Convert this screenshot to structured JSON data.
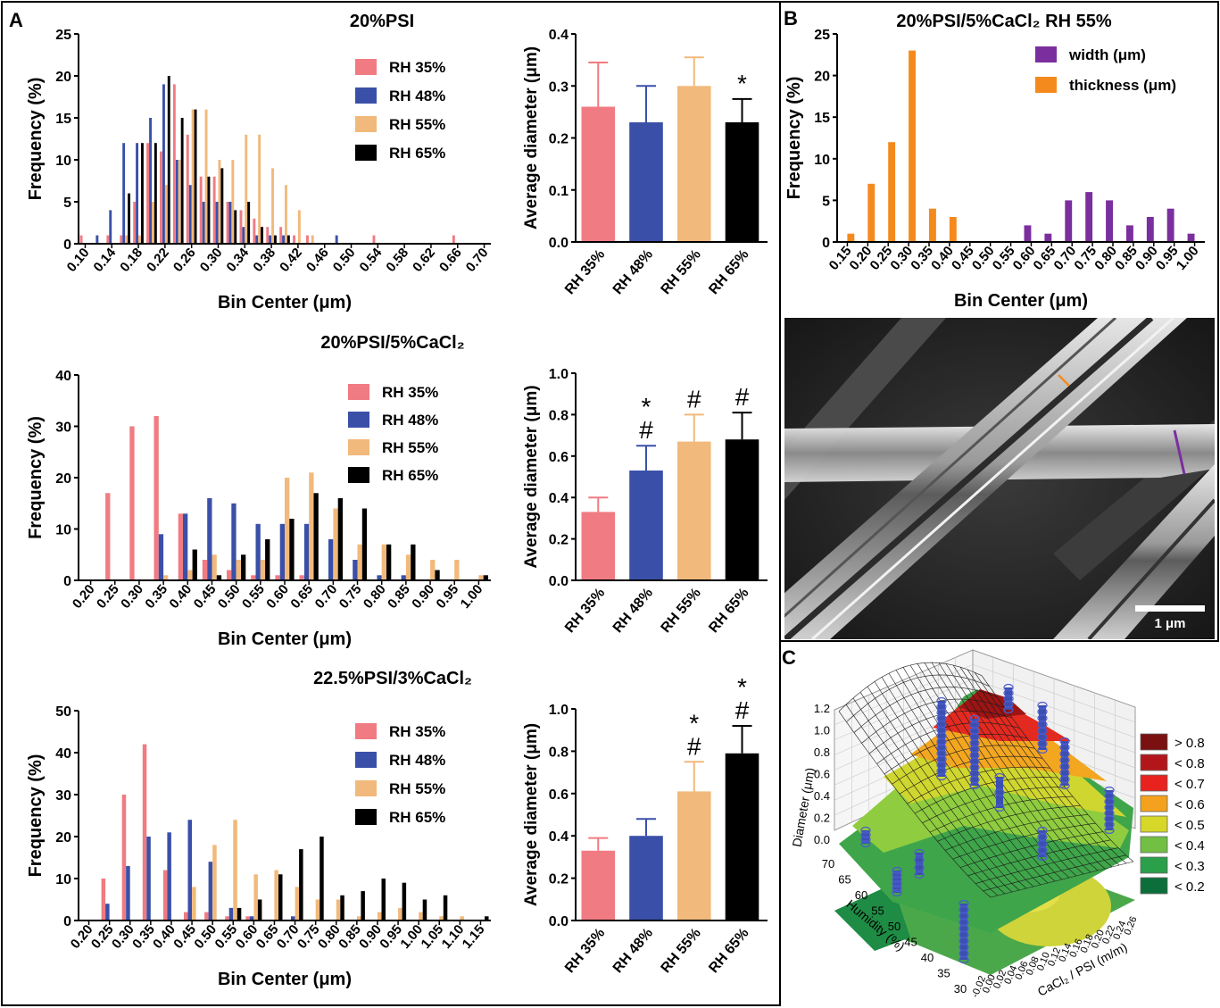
{
  "panels": {
    "A": "A",
    "B": "B",
    "C": "C"
  },
  "common": {
    "hist_ylabel": "Frequency (%)",
    "hist_xlabel": "Bin Center (μm)",
    "bar_ylabel": "Average diameter (μm)",
    "bar_categories": [
      "RH 35%",
      "RH 48%",
      "RH 55%",
      "RH 65%"
    ]
  },
  "colors": {
    "rh35": "#f07b82",
    "rh48": "#3a50a8",
    "rh55": "#f1b97b",
    "rh65": "#000000",
    "width": "#7b2f9e",
    "thickness": "#f48a1e"
  },
  "chart_data": [
    {
      "id": "A1-hist",
      "type": "bar",
      "title": "20%PSI",
      "xlabel": "Bin Center (μm)",
      "ylabel": "Frequency (%)",
      "ylim": [
        0,
        25
      ],
      "yticks": [
        0,
        5,
        10,
        15,
        20,
        25
      ],
      "categories": [
        "0.10",
        "0.12",
        "0.14",
        "0.16",
        "0.18",
        "0.20",
        "0.22",
        "0.24",
        "0.26",
        "0.28",
        "0.30",
        "0.32",
        "0.34",
        "0.36",
        "0.38",
        "0.40",
        "0.42",
        "0.44",
        "0.46",
        "0.48",
        "0.50",
        "0.52",
        "0.54",
        "0.56",
        "0.58",
        "0.60",
        "0.62",
        "0.64",
        "0.66",
        "0.68",
        "0.70"
      ],
      "tick_labels": [
        "0.10",
        "0.14",
        "0.18",
        "0.22",
        "0.26",
        "0.30",
        "0.34",
        "0.38",
        "0.42",
        "0.46",
        "0.50",
        "0.54",
        "0.58",
        "0.62",
        "0.66",
        "0.70"
      ],
      "legend_position": "top-right",
      "series": [
        {
          "name": "RH 35%",
          "values": [
            1,
            0,
            1,
            1,
            5,
            12,
            11,
            19,
            13,
            8,
            8,
            5,
            4,
            3,
            2,
            2,
            1,
            1,
            0,
            0,
            0,
            0,
            1,
            0,
            0,
            0,
            0,
            0,
            1,
            0,
            0
          ]
        },
        {
          "name": "RH 48%",
          "values": [
            0,
            1,
            4,
            12,
            12,
            15,
            19,
            10,
            7,
            5,
            5,
            5,
            2,
            1,
            1,
            1,
            0,
            0,
            0,
            1,
            0,
            0,
            0,
            0,
            0,
            0,
            0,
            0,
            0,
            0,
            0
          ]
        },
        {
          "name": "RH 55%",
          "values": [
            0,
            0,
            0,
            1,
            1,
            5,
            7,
            10,
            16,
            16,
            10,
            10,
            13,
            13,
            9,
            7,
            4,
            1,
            0,
            0,
            0,
            0,
            0,
            0,
            0,
            0,
            0,
            0,
            0,
            0,
            0
          ]
        },
        {
          "name": "RH 65%",
          "values": [
            0,
            0,
            0,
            6,
            12,
            12,
            20,
            15,
            16,
            8,
            9,
            4,
            5,
            2,
            1,
            1,
            0,
            0,
            0,
            0,
            0,
            0,
            0,
            0,
            0,
            0,
            0,
            0,
            0,
            0,
            0
          ]
        }
      ]
    },
    {
      "id": "A1-avg",
      "type": "bar",
      "title": "",
      "ylabel": "Average diameter (μm)",
      "ylim": [
        0,
        0.4
      ],
      "yticks": [
        0.0,
        0.1,
        0.2,
        0.3,
        0.4
      ],
      "categories": [
        "RH 35%",
        "RH 48%",
        "RH 55%",
        "RH 65%"
      ],
      "values": [
        0.26,
        0.23,
        0.3,
        0.23
      ],
      "errors": [
        0.085,
        0.07,
        0.055,
        0.045
      ],
      "annotations": [
        "",
        "",
        "",
        "*"
      ]
    },
    {
      "id": "A2-hist",
      "type": "bar",
      "title": "20%PSI/5%CaCl₂",
      "xlabel": "Bin Center (μm)",
      "ylabel": "Frequency (%)",
      "ylim": [
        0,
        40
      ],
      "yticks": [
        0,
        10,
        20,
        30,
        40
      ],
      "categories": [
        "0.20",
        "0.25",
        "0.30",
        "0.35",
        "0.40",
        "0.45",
        "0.50",
        "0.55",
        "0.60",
        "0.65",
        "0.70",
        "0.75",
        "0.80",
        "0.85",
        "0.90",
        "0.95",
        "1.00"
      ],
      "tick_labels": [
        "0.20",
        "0.25",
        "0.30",
        "0.35",
        "0.40",
        "0.45",
        "0.50",
        "0.55",
        "0.60",
        "0.65",
        "0.70",
        "0.75",
        "0.80",
        "0.85",
        "0.90",
        "0.95",
        "1.00"
      ],
      "legend_position": "top-right",
      "series": [
        {
          "name": "RH 35%",
          "values": [
            0,
            17,
            30,
            32,
            13,
            4,
            2,
            1,
            1,
            1,
            0,
            0,
            0,
            0,
            0,
            0,
            0
          ]
        },
        {
          "name": "RH 48%",
          "values": [
            0,
            0,
            0,
            9,
            13,
            16,
            15,
            11,
            11,
            11,
            8,
            4,
            1,
            1,
            0,
            0,
            0
          ]
        },
        {
          "name": "RH 55%",
          "values": [
            0,
            0,
            0,
            1,
            2,
            5,
            4,
            4,
            20,
            21,
            14,
            7,
            7,
            5,
            4,
            4,
            1
          ]
        },
        {
          "name": "RH 65%",
          "values": [
            0,
            0,
            0,
            0,
            6,
            1,
            5,
            8,
            12,
            17,
            16,
            14,
            7,
            7,
            2,
            0,
            1
          ]
        }
      ]
    },
    {
      "id": "A2-avg",
      "type": "bar",
      "title": "",
      "ylabel": "Average diameter (μm)",
      "ylim": [
        0,
        1.0
      ],
      "yticks": [
        0.0,
        0.2,
        0.4,
        0.6,
        0.8,
        1.0
      ],
      "categories": [
        "RH 35%",
        "RH 48%",
        "RH 55%",
        "RH 65%"
      ],
      "values": [
        0.33,
        0.53,
        0.67,
        0.68
      ],
      "errors": [
        0.07,
        0.12,
        0.13,
        0.13
      ],
      "annotations": [
        "",
        "*\n#",
        "#",
        "#"
      ]
    },
    {
      "id": "A3-hist",
      "type": "bar",
      "title": "22.5%PSI/3%CaCl₂",
      "xlabel": "Bin Center (μm)",
      "ylabel": "Frequency (%)",
      "ylim": [
        0,
        50
      ],
      "yticks": [
        0,
        10,
        20,
        30,
        40,
        50
      ],
      "categories": [
        "0.20",
        "0.25",
        "0.30",
        "0.35",
        "0.40",
        "0.45",
        "0.50",
        "0.55",
        "0.60",
        "0.65",
        "0.70",
        "0.75",
        "0.80",
        "0.85",
        "0.90",
        "0.95",
        "1.00",
        "1.05",
        "1.10",
        "1.15"
      ],
      "tick_labels": [
        "0.20",
        "0.25",
        "0.30",
        "0.35",
        "0.40",
        "0.45",
        "0.50",
        "0.55",
        "0.60",
        "0.65",
        "0.70",
        "0.75",
        "0.80",
        "0.85",
        "0.90",
        "0.95",
        "1.00",
        "1.05",
        "1.10",
        "1.15"
      ],
      "legend_position": "top-right",
      "series": [
        {
          "name": "RH 35%",
          "values": [
            0,
            10,
            30,
            42,
            12,
            2,
            2,
            1,
            1,
            0,
            0,
            0,
            0,
            0,
            0,
            0,
            0,
            0,
            0,
            0
          ]
        },
        {
          "name": "RH 48%",
          "values": [
            0,
            4,
            13,
            20,
            21,
            24,
            14,
            3,
            1,
            0,
            1,
            0,
            0,
            0,
            0,
            0,
            0,
            0,
            0,
            0
          ]
        },
        {
          "name": "RH 55%",
          "values": [
            0,
            0,
            0,
            0,
            0,
            8,
            18,
            24,
            11,
            12,
            8,
            5,
            5,
            1,
            2,
            3,
            2,
            1,
            1,
            0
          ]
        },
        {
          "name": "RH 65%",
          "values": [
            0,
            0,
            0,
            0,
            0,
            0,
            0,
            3,
            5,
            11,
            17,
            20,
            6,
            7,
            10,
            9,
            5,
            6,
            0,
            1
          ]
        }
      ]
    },
    {
      "id": "A3-avg",
      "type": "bar",
      "title": "",
      "ylabel": "Average diameter (μm)",
      "ylim": [
        0,
        1.0
      ],
      "yticks": [
        0.0,
        0.2,
        0.4,
        0.6,
        0.8,
        1.0
      ],
      "categories": [
        "RH 35%",
        "RH 48%",
        "RH 55%",
        "RH 65%"
      ],
      "values": [
        0.33,
        0.4,
        0.61,
        0.79
      ],
      "errors": [
        0.06,
        0.08,
        0.14,
        0.13
      ],
      "annotations": [
        "",
        "",
        "*\n#",
        "*\n#"
      ]
    },
    {
      "id": "B-hist",
      "type": "bar",
      "title": "20%PSI/5%CaCl₂ RH 55%",
      "xlabel": "Bin Center (μm)",
      "ylabel": "Frequency (%)",
      "ylim": [
        0,
        25
      ],
      "yticks": [
        0,
        5,
        10,
        15,
        20,
        25
      ],
      "categories": [
        "0.15",
        "0.20",
        "0.25",
        "0.30",
        "0.35",
        "0.40",
        "0.45",
        "0.50",
        "0.55",
        "0.60",
        "0.65",
        "0.70",
        "0.75",
        "0.80",
        "0.85",
        "0.90",
        "0.95",
        "1.00"
      ],
      "tick_labels": [
        "0.15",
        "0.20",
        "0.25",
        "0.30",
        "0.35",
        "0.40",
        "0.45",
        "0.50",
        "0.55",
        "0.60",
        "0.65",
        "0.70",
        "0.75",
        "0.80",
        "0.85",
        "0.90",
        "0.95",
        "1.00"
      ],
      "legend_position": "top-right",
      "series": [
        {
          "name": "width (μm)",
          "values": [
            0,
            0,
            0,
            0,
            0,
            0,
            0,
            0,
            0,
            2,
            1,
            5,
            6,
            5,
            2,
            3,
            4,
            1
          ]
        },
        {
          "name": "thickness (μm)",
          "values": [
            1,
            7,
            12,
            23,
            4,
            3,
            0,
            0,
            0,
            0,
            0,
            0,
            0,
            0,
            0,
            0,
            0,
            0
          ]
        }
      ]
    },
    {
      "id": "C-surface",
      "type": "heatmap",
      "title": "",
      "zlabel": "Diameter (μm)",
      "xlabel": "CaCl₂ / PSI (m/m)",
      "ylabel": "Humidity (%)",
      "ztick_labels": [
        "0.0",
        "0.2",
        "0.4",
        "0.6",
        "0.8",
        "1.0",
        "1.2"
      ],
      "humidity_ticks": [
        "70",
        "65",
        "60",
        "55",
        "50",
        "45",
        "40",
        "35",
        "30"
      ],
      "ratio_ticks": [
        "-0.02",
        "0.00",
        "0.02",
        "0.04",
        "0.06",
        "0.08",
        "0.10",
        "0.12",
        "0.14",
        "0.16",
        "0.18",
        "0.20",
        "0.22",
        "0.24",
        "0.26"
      ],
      "legend": [
        "> 0.8",
        "< 0.8",
        "< 0.7",
        "< 0.6",
        "< 0.5",
        "< 0.4",
        "< 0.3",
        "< 0.2"
      ],
      "legend_colors": [
        "#7a1010",
        "#b3161a",
        "#e8231f",
        "#f4a21d",
        "#d7d72a",
        "#71c043",
        "#29a049",
        "#0c6e3a"
      ]
    }
  ],
  "micrograph": {
    "scale_bar": "1 μm"
  }
}
